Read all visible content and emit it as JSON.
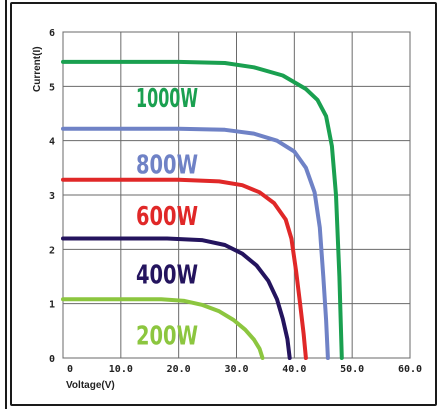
{
  "chart_data": {
    "type": "line",
    "xlabel": "Voltage(V)",
    "ylabel": "Current(I)",
    "xlim": [
      0,
      60
    ],
    "ylim": [
      0,
      6
    ],
    "grid": true,
    "x_ticks": [
      "0",
      "10.0",
      "20.0",
      "30.0",
      "40.0",
      "50.0",
      "60.0"
    ],
    "y_ticks": [
      "0",
      "1",
      "2",
      "3",
      "4",
      "5",
      "6"
    ],
    "series": [
      {
        "name": "1000W",
        "color": "#1aa050",
        "points": [
          [
            0,
            5.45
          ],
          [
            10,
            5.45
          ],
          [
            20,
            5.45
          ],
          [
            28,
            5.43
          ],
          [
            33,
            5.35
          ],
          [
            38,
            5.2
          ],
          [
            42,
            4.95
          ],
          [
            44,
            4.75
          ],
          [
            45.5,
            4.45
          ],
          [
            46.5,
            3.9
          ],
          [
            47.2,
            3.0
          ],
          [
            47.8,
            1.5
          ],
          [
            48.2,
            0
          ]
        ]
      },
      {
        "name": "800W",
        "color": "#6f82c6",
        "points": [
          [
            0,
            4.22
          ],
          [
            10,
            4.22
          ],
          [
            20,
            4.22
          ],
          [
            28,
            4.2
          ],
          [
            33,
            4.13
          ],
          [
            37,
            4.0
          ],
          [
            40,
            3.8
          ],
          [
            42,
            3.5
          ],
          [
            43.5,
            3.05
          ],
          [
            44.4,
            2.4
          ],
          [
            45,
            1.5
          ],
          [
            45.5,
            0.7
          ],
          [
            45.8,
            0
          ]
        ]
      },
      {
        "name": "600W",
        "color": "#e02828",
        "points": [
          [
            0,
            3.28
          ],
          [
            10,
            3.28
          ],
          [
            20,
            3.28
          ],
          [
            27,
            3.25
          ],
          [
            31,
            3.18
          ],
          [
            34,
            3.05
          ],
          [
            36.5,
            2.85
          ],
          [
            38.5,
            2.55
          ],
          [
            39.5,
            2.2
          ],
          [
            40.3,
            1.6
          ],
          [
            41,
            1.0
          ],
          [
            41.6,
            0.45
          ],
          [
            42,
            0
          ]
        ]
      },
      {
        "name": "400W",
        "color": "#24145e",
        "points": [
          [
            0,
            2.2
          ],
          [
            10,
            2.2
          ],
          [
            18,
            2.2
          ],
          [
            24,
            2.17
          ],
          [
            28,
            2.08
          ],
          [
            31,
            1.92
          ],
          [
            33.5,
            1.7
          ],
          [
            35.5,
            1.42
          ],
          [
            37,
            1.08
          ],
          [
            38,
            0.72
          ],
          [
            38.8,
            0.35
          ],
          [
            39.2,
            0
          ]
        ]
      },
      {
        "name": "200W",
        "color": "#8cc63f",
        "points": [
          [
            0,
            1.08
          ],
          [
            10,
            1.08
          ],
          [
            17,
            1.08
          ],
          [
            21,
            1.05
          ],
          [
            24,
            0.98
          ],
          [
            27,
            0.86
          ],
          [
            29.5,
            0.7
          ],
          [
            31.5,
            0.52
          ],
          [
            33,
            0.34
          ],
          [
            34,
            0.17
          ],
          [
            34.5,
            0
          ]
        ]
      }
    ]
  }
}
